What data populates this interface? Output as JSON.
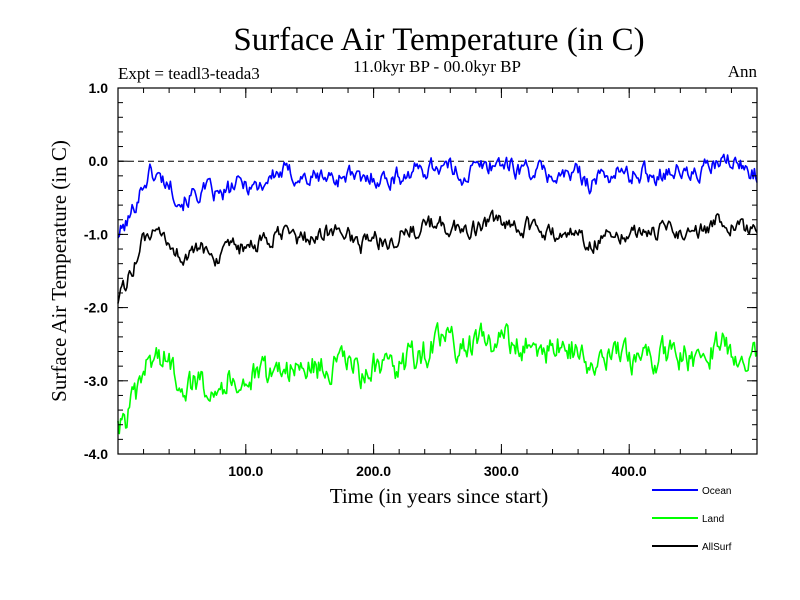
{
  "chart_data": {
    "type": "line",
    "title": "Surface Air Temperature (in C)",
    "subtitle": "11.0kyr BP - 00.0kyr BP",
    "experiment_label": "Expt = teadl3-teada3",
    "season_label": "Ann",
    "xlabel": "Time (in years since start)",
    "ylabel": "Surface Air Temperature (in C)",
    "xlim": [
      0,
      500
    ],
    "ylim": [
      -4.0,
      1.0
    ],
    "x_ticks": [
      100,
      200,
      300,
      400
    ],
    "x_tick_labels": [
      "100.0",
      "200.0",
      "300.0",
      "400.0"
    ],
    "y_ticks": [
      1.0,
      0.0,
      -1.0,
      -2.0,
      -3.0,
      -4.0
    ],
    "y_tick_labels": [
      "1.0",
      "0.0",
      "-1.0",
      "-2.0",
      "-3.0",
      "-4.0"
    ],
    "reference_line": {
      "y": 0.0,
      "style": "dashed"
    },
    "legend_position": "bottom-right",
    "series": [
      {
        "name": "Ocean",
        "color": "#0000ff",
        "x": [
          0,
          5,
          10,
          15,
          20,
          25,
          30,
          40,
          50,
          60,
          70,
          80,
          90,
          100,
          110,
          120,
          130,
          140,
          150,
          160,
          170,
          180,
          190,
          200,
          210,
          220,
          230,
          240,
          250,
          260,
          270,
          280,
          290,
          300,
          310,
          320,
          330,
          340,
          350,
          360,
          370,
          380,
          390,
          400,
          410,
          420,
          430,
          440,
          450,
          460,
          470,
          480,
          490,
          500
        ],
        "values": [
          -1.0,
          -0.9,
          -0.75,
          -0.5,
          -0.3,
          -0.15,
          -0.2,
          -0.3,
          -0.55,
          -0.45,
          -0.4,
          -0.5,
          -0.35,
          -0.3,
          -0.35,
          -0.2,
          -0.15,
          -0.2,
          -0.25,
          -0.2,
          -0.25,
          -0.15,
          -0.3,
          -0.2,
          -0.25,
          -0.2,
          -0.15,
          -0.1,
          -0.05,
          -0.1,
          -0.2,
          -0.1,
          -0.05,
          0.0,
          -0.1,
          -0.1,
          -0.15,
          -0.2,
          -0.2,
          -0.15,
          -0.3,
          -0.2,
          -0.15,
          -0.2,
          -0.15,
          -0.2,
          -0.1,
          -0.15,
          -0.2,
          -0.1,
          -0.05,
          0.0,
          -0.1,
          -0.15
        ]
      },
      {
        "name": "Land",
        "color": "#00ff00",
        "x": [
          0,
          5,
          10,
          15,
          20,
          25,
          30,
          40,
          50,
          60,
          70,
          80,
          90,
          100,
          110,
          120,
          130,
          140,
          150,
          160,
          170,
          180,
          190,
          200,
          210,
          220,
          230,
          240,
          250,
          260,
          270,
          280,
          290,
          300,
          310,
          320,
          330,
          340,
          350,
          360,
          370,
          380,
          390,
          400,
          410,
          420,
          430,
          440,
          450,
          460,
          470,
          480,
          490,
          500
        ],
        "values": [
          -3.6,
          -3.6,
          -3.35,
          -3.25,
          -2.9,
          -2.7,
          -2.65,
          -2.75,
          -3.0,
          -3.05,
          -3.0,
          -3.05,
          -2.95,
          -3.0,
          -2.95,
          -2.9,
          -2.75,
          -2.9,
          -2.8,
          -2.85,
          -2.8,
          -2.75,
          -2.95,
          -2.8,
          -2.9,
          -2.8,
          -2.7,
          -2.6,
          -2.5,
          -2.45,
          -2.55,
          -2.5,
          -2.45,
          -2.4,
          -2.55,
          -2.5,
          -2.6,
          -2.55,
          -2.5,
          -2.6,
          -2.85,
          -2.75,
          -2.65,
          -2.7,
          -2.65,
          -2.75,
          -2.6,
          -2.65,
          -2.7,
          -2.6,
          -2.5,
          -2.55,
          -2.65,
          -2.7
        ]
      },
      {
        "name": "AllSurf",
        "color": "#000000",
        "x": [
          0,
          5,
          10,
          15,
          20,
          25,
          30,
          40,
          50,
          60,
          70,
          80,
          90,
          100,
          110,
          120,
          130,
          140,
          150,
          160,
          170,
          180,
          190,
          200,
          210,
          220,
          230,
          240,
          250,
          260,
          270,
          280,
          290,
          300,
          310,
          320,
          330,
          340,
          350,
          360,
          370,
          380,
          390,
          400,
          410,
          420,
          430,
          440,
          450,
          460,
          470,
          480,
          490,
          500
        ],
        "values": [
          -1.85,
          -1.75,
          -1.5,
          -1.3,
          -1.1,
          -1.0,
          -1.05,
          -1.15,
          -1.3,
          -1.25,
          -1.2,
          -1.35,
          -1.2,
          -1.2,
          -1.15,
          -1.05,
          -1.0,
          -1.05,
          -1.05,
          -1.0,
          -0.95,
          -1.0,
          -1.15,
          -1.05,
          -1.1,
          -1.0,
          -0.95,
          -0.9,
          -0.85,
          -0.9,
          -0.95,
          -0.9,
          -0.85,
          -0.85,
          -0.95,
          -0.9,
          -0.95,
          -1.0,
          -1.0,
          -0.95,
          -1.15,
          -1.0,
          -0.95,
          -1.0,
          -0.95,
          -1.0,
          -0.9,
          -0.95,
          -1.0,
          -0.9,
          -0.8,
          -0.85,
          -0.95,
          -1.0
        ]
      }
    ]
  }
}
